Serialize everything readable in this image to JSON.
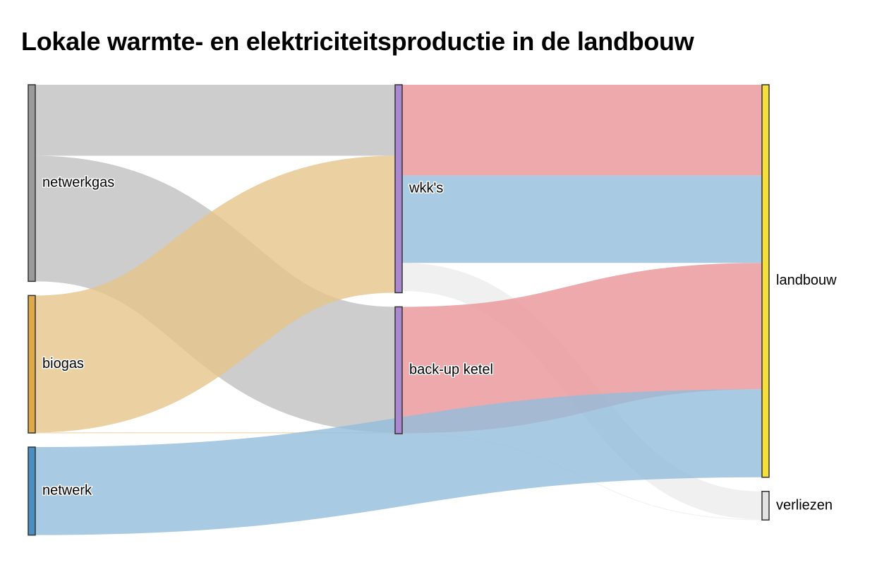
{
  "title": "Lokale warmte- en elektriciteitsproductie in de landbouw",
  "colors": {
    "netwerkgas": "#9a9a9a",
    "biogas": "#e0a847",
    "netwerk": "#4a8fc4",
    "wkks": "#a988cf",
    "backup": "#a988cf",
    "landbouw": "#f6de3b",
    "verliezen": "#e2e2e2",
    "link_gas": "#c0c0c0",
    "link_biogas": "#e6c48a",
    "link_heat": "#eb9a9e",
    "link_electricity": "#94bddc",
    "link_loss": "#e6e6e6"
  },
  "nodes": [
    {
      "id": "netwerkgas",
      "label": "netwerkgas",
      "column": 0
    },
    {
      "id": "biogas",
      "label": "biogas",
      "column": 0
    },
    {
      "id": "netwerk",
      "label": "netwerk",
      "column": 0
    },
    {
      "id": "wkks",
      "label": "wkk's",
      "column": 1
    },
    {
      "id": "backup",
      "label": "back-up ketel",
      "column": 1
    },
    {
      "id": "landbouw",
      "label": "landbouw",
      "column": 2
    },
    {
      "id": "verliezen",
      "label": "verliezen",
      "column": 2
    }
  ],
  "links": [
    {
      "source": "netwerkgas",
      "target": "wkks",
      "value": 100,
      "kind": "gas"
    },
    {
      "source": "netwerkgas",
      "target": "backup",
      "value": 177,
      "kind": "gas"
    },
    {
      "source": "biogas",
      "target": "wkks",
      "value": 193,
      "kind": "biogas"
    },
    {
      "source": "biogas",
      "target": "backup",
      "value": 0.7,
      "kind": "biogas"
    },
    {
      "source": "wkks",
      "target": "landbouw",
      "value": 128,
      "kind": "heat"
    },
    {
      "source": "wkks",
      "target": "landbouw",
      "value": 123,
      "kind": "electricity"
    },
    {
      "source": "wkks",
      "target": "verliezen",
      "value": 39.5,
      "kind": "loss"
    },
    {
      "source": "backup",
      "target": "landbouw",
      "value": 178,
      "kind": "heat"
    },
    {
      "source": "backup",
      "target": "verliezen",
      "value": 0.8,
      "kind": "loss"
    },
    {
      "source": "netwerk",
      "target": "landbouw",
      "value": 124,
      "kind": "electricity"
    }
  ]
}
